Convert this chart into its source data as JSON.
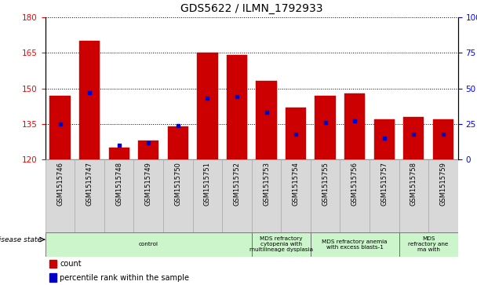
{
  "title": "GDS5622 / ILMN_1792933",
  "samples": [
    "GSM1515746",
    "GSM1515747",
    "GSM1515748",
    "GSM1515749",
    "GSM1515750",
    "GSM1515751",
    "GSM1515752",
    "GSM1515753",
    "GSM1515754",
    "GSM1515755",
    "GSM1515756",
    "GSM1515757",
    "GSM1515758",
    "GSM1515759"
  ],
  "counts": [
    147,
    170,
    125,
    128,
    134,
    165,
    164,
    153,
    142,
    147,
    148,
    137,
    138,
    137
  ],
  "percentile_ranks": [
    25,
    47,
    10,
    12,
    24,
    43,
    44,
    33,
    18,
    26,
    27,
    15,
    18,
    18
  ],
  "y_min": 120,
  "y_max": 180,
  "y_ticks": [
    120,
    135,
    150,
    165,
    180
  ],
  "y2_ticks": [
    0,
    25,
    50,
    75,
    100
  ],
  "bar_color": "#cc0000",
  "percentile_color": "#0000cc",
  "disease_state_groups": [
    {
      "label": "control",
      "start": 0,
      "end": 7
    },
    {
      "label": "MDS refractory\ncytopenia with\nmultilineage dysplasia",
      "start": 7,
      "end": 9
    },
    {
      "label": "MDS refractory anemia\nwith excess blasts-1",
      "start": 9,
      "end": 12
    },
    {
      "label": "MDS\nrefractory ane\nma with",
      "start": 12,
      "end": 14
    }
  ],
  "cell_bg": "#d8d8d8",
  "ds_bg": "#ccf5cc"
}
